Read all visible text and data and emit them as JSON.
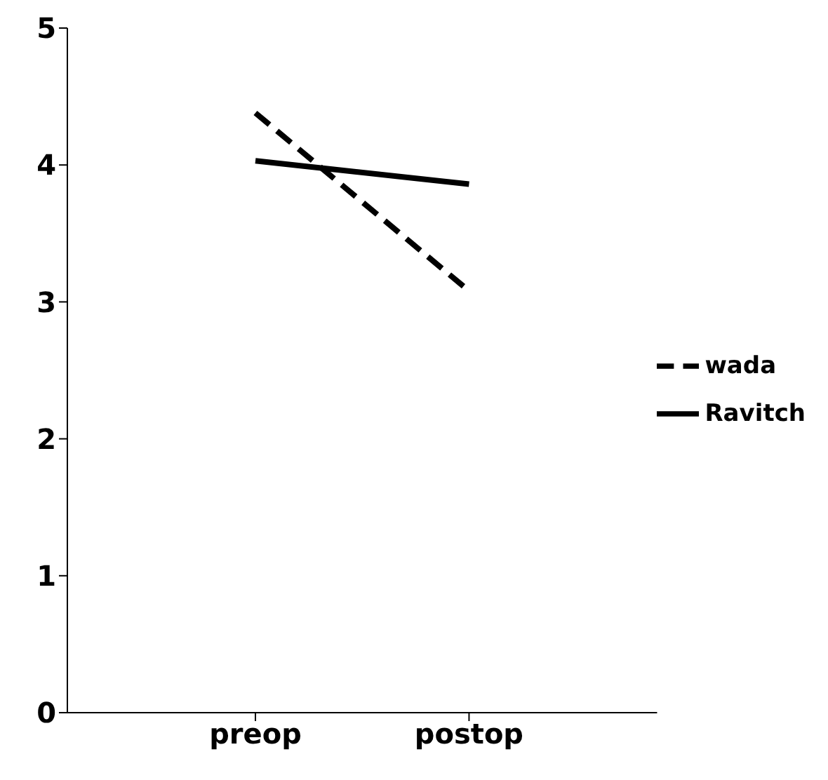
{
  "chart_data": {
    "type": "line",
    "categories": [
      "preop",
      "postop"
    ],
    "series": [
      {
        "name": "wada",
        "color": "#000000",
        "line_style": "dashed",
        "values": [
          4.38,
          3.08
        ]
      },
      {
        "name": "Ravitch",
        "color": "#000000",
        "line_style": "solid",
        "values": [
          4.03,
          3.86
        ]
      }
    ],
    "ylim": [
      0,
      5
    ],
    "yticks": [
      0,
      1,
      2,
      3,
      4,
      5
    ],
    "grid": false,
    "legend": "right",
    "marker": "none"
  }
}
